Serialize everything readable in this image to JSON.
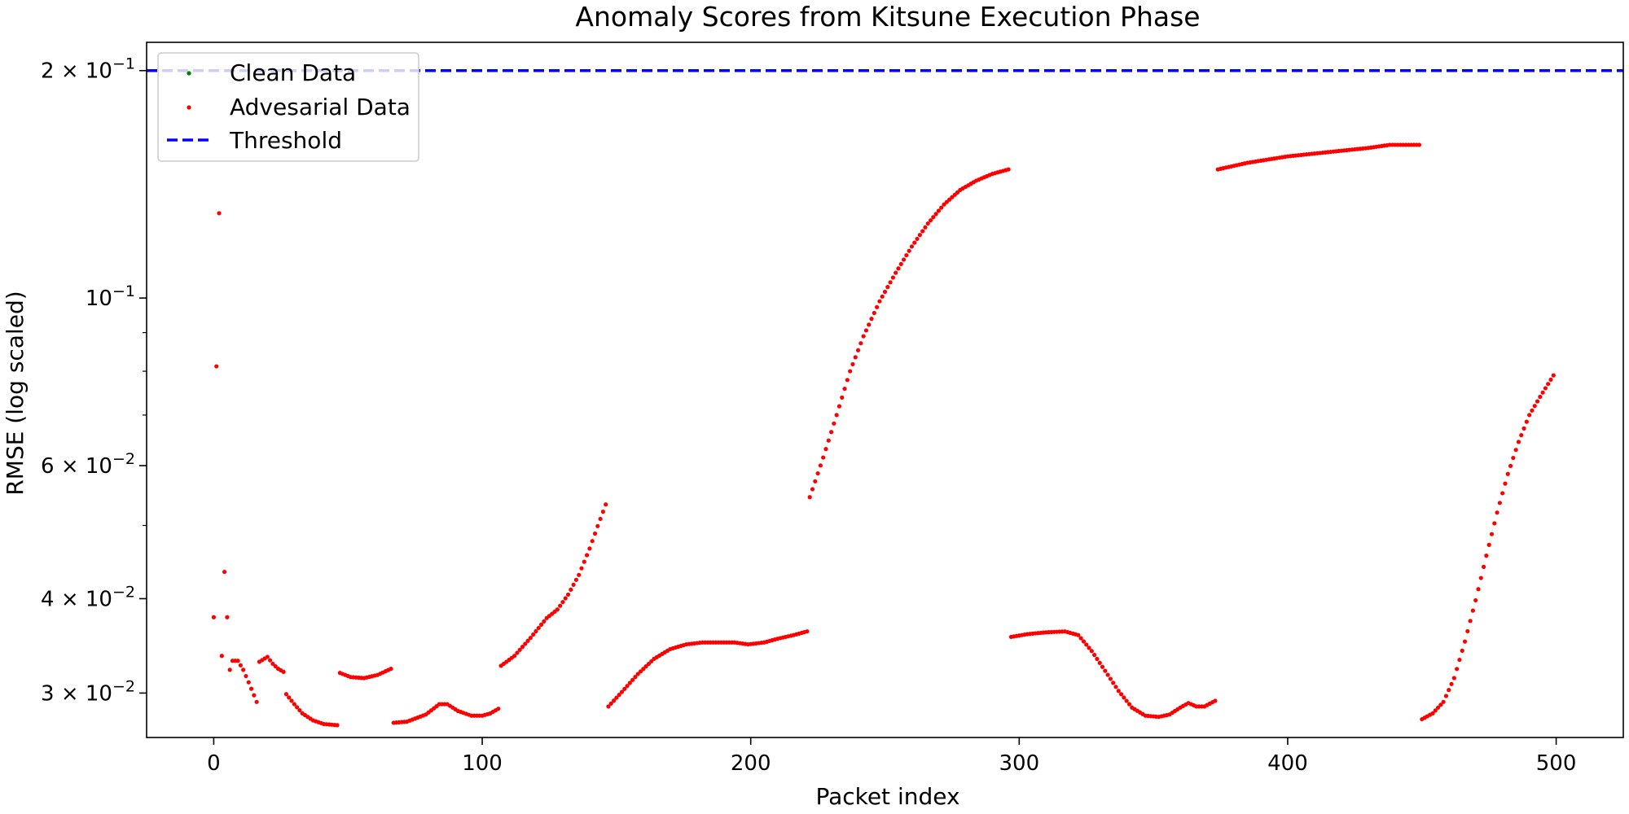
{
  "chart_data": {
    "type": "scatter",
    "title": "Anomaly Scores from Kitsune Execution Phase",
    "xlabel": "Packet index",
    "ylabel": "RMSE (log scaled)",
    "xlim": [
      -25,
      525
    ],
    "ylim": [
      0.0262,
      0.218
    ],
    "yscale": "log",
    "grid": false,
    "legend_position": "top-left",
    "x_ticks": [
      {
        "value": 0,
        "label": "0"
      },
      {
        "value": 100,
        "label": "100"
      },
      {
        "value": 200,
        "label": "200"
      },
      {
        "value": 300,
        "label": "300"
      },
      {
        "value": 400,
        "label": "400"
      },
      {
        "value": 500,
        "label": "500"
      }
    ],
    "y_major_ticks": [
      {
        "value": 0.03,
        "base": "3",
        "exp": "−2"
      },
      {
        "value": 0.04,
        "base": "4",
        "exp": "−2"
      },
      {
        "value": 0.06,
        "base": "6",
        "exp": "−2"
      },
      {
        "value": 0.1,
        "base": "",
        "exp": "−1"
      },
      {
        "value": 0.2,
        "base": "2",
        "exp": "−1"
      }
    ],
    "y_minor_ticks": [
      0.05,
      0.07,
      0.08,
      0.09
    ],
    "threshold": 0.2,
    "series": [
      {
        "name": "Clean Data",
        "color": "#008000",
        "points": []
      },
      {
        "name": "Advesarial Data",
        "color": "#ff0000",
        "segments": [
          {
            "x0": 0,
            "x1": 0,
            "knots": [
              [
                0,
                0.0378
              ]
            ]
          },
          {
            "x0": 1,
            "x1": 1,
            "knots": [
              [
                1,
                0.0812
              ]
            ]
          },
          {
            "x0": 2,
            "x1": 2,
            "knots": [
              [
                2,
                0.1295
              ]
            ]
          },
          {
            "x0": 3,
            "x1": 3,
            "knots": [
              [
                3,
                0.0336
              ]
            ]
          },
          {
            "x0": 4,
            "x1": 4,
            "knots": [
              [
                4,
                0.0434
              ]
            ]
          },
          {
            "x0": 5,
            "x1": 5,
            "knots": [
              [
                5,
                0.0378
              ]
            ]
          },
          {
            "x0": 6,
            "x1": 6,
            "knots": [
              [
                6,
                0.0322
              ]
            ]
          },
          {
            "x0": 7,
            "x1": 16,
            "knots": [
              [
                7,
                0.0331
              ],
              [
                9,
                0.0331
              ],
              [
                11,
                0.0322
              ],
              [
                13,
                0.031
              ],
              [
                15,
                0.0298
              ],
              [
                16,
                0.0292
              ]
            ]
          },
          {
            "x0": 17,
            "x1": 26,
            "knots": [
              [
                17,
                0.033
              ],
              [
                20,
                0.0335
              ],
              [
                22,
                0.0328
              ],
              [
                24,
                0.0323
              ],
              [
                26,
                0.032
              ]
            ]
          },
          {
            "x0": 27,
            "x1": 46,
            "knots": [
              [
                27,
                0.0299
              ],
              [
                30,
                0.029
              ],
              [
                33,
                0.0282
              ],
              [
                37,
                0.0276
              ],
              [
                41,
                0.0273
              ],
              [
                46,
                0.0272
              ]
            ]
          },
          {
            "x0": 47,
            "x1": 66,
            "knots": [
              [
                47,
                0.0319
              ],
              [
                51,
                0.0315
              ],
              [
                56,
                0.0314
              ],
              [
                61,
                0.0317
              ],
              [
                66,
                0.0323
              ]
            ]
          },
          {
            "x0": 67,
            "x1": 106,
            "knots": [
              [
                67,
                0.0274
              ],
              [
                72,
                0.0275
              ],
              [
                79,
                0.0281
              ],
              [
                84,
                0.029
              ],
              [
                87,
                0.029
              ],
              [
                91,
                0.0284
              ],
              [
                96,
                0.028
              ],
              [
                100,
                0.028
              ],
              [
                103,
                0.0282
              ],
              [
                106,
                0.0286
              ]
            ]
          },
          {
            "x0": 107,
            "x1": 146,
            "knots": [
              [
                107,
                0.0326
              ],
              [
                112,
                0.0336
              ],
              [
                118,
                0.0355
              ],
              [
                124,
                0.0377
              ],
              [
                128,
                0.0387
              ],
              [
                132,
                0.0405
              ],
              [
                136,
                0.043
              ],
              [
                140,
                0.0466
              ],
              [
                143,
                0.0499
              ],
              [
                146,
                0.0533
              ]
            ]
          },
          {
            "x0": 147,
            "x1": 221,
            "knots": [
              [
                147,
                0.0288
              ],
              [
                152,
                0.0301
              ],
              [
                158,
                0.0318
              ],
              [
                164,
                0.0333
              ],
              [
                170,
                0.0343
              ],
              [
                176,
                0.0348
              ],
              [
                182,
                0.035
              ],
              [
                188,
                0.035
              ],
              [
                194,
                0.035
              ],
              [
                199,
                0.0348
              ],
              [
                205,
                0.035
              ],
              [
                210,
                0.0354
              ],
              [
                216,
                0.0358
              ],
              [
                221,
                0.0362
              ]
            ]
          },
          {
            "x0": 222,
            "x1": 296,
            "knots": [
              [
                222,
                0.0545
              ],
              [
                227,
                0.0615
              ],
              [
                232,
                0.07
              ],
              [
                237,
                0.08
              ],
              [
                242,
                0.089
              ],
              [
                248,
                0.099
              ],
              [
                254,
                0.108
              ],
              [
                260,
                0.117
              ],
              [
                266,
                0.1255
              ],
              [
                272,
                0.133
              ],
              [
                278,
                0.139
              ],
              [
                284,
                0.143
              ],
              [
                290,
                0.146
              ],
              [
                296,
                0.148
              ]
            ]
          },
          {
            "x0": 297,
            "x1": 373,
            "knots": [
              [
                297,
                0.0356
              ],
              [
                303,
                0.0359
              ],
              [
                310,
                0.0361
              ],
              [
                317,
                0.0362
              ],
              [
                322,
                0.0358
              ],
              [
                327,
                0.0341
              ],
              [
                332,
                0.0321
              ],
              [
                337,
                0.0302
              ],
              [
                342,
                0.0287
              ],
              [
                347,
                0.028
              ],
              [
                352,
                0.0279
              ],
              [
                356,
                0.0281
              ],
              [
                360,
                0.0287
              ],
              [
                363,
                0.0291
              ],
              [
                366,
                0.0288
              ],
              [
                369,
                0.0288
              ],
              [
                373,
                0.0293
              ]
            ]
          },
          {
            "x0": 374,
            "x1": 449,
            "knots": [
              [
                374,
                0.148
              ],
              [
                385,
                0.151
              ],
              [
                400,
                0.154
              ],
              [
                415,
                0.156
              ],
              [
                430,
                0.158
              ],
              [
                438,
                0.1595
              ],
              [
                449,
                0.1595
              ]
            ]
          },
          {
            "x0": 450,
            "x1": 499,
            "knots": [
              [
                450,
                0.0277
              ],
              [
                454,
                0.0282
              ],
              [
                458,
                0.0292
              ],
              [
                462,
                0.0314
              ],
              [
                466,
                0.0351
              ],
              [
                470,
                0.0398
              ],
              [
                474,
                0.0456
              ],
              [
                478,
                0.052
              ],
              [
                482,
                0.0585
              ],
              [
                486,
                0.0645
              ],
              [
                490,
                0.07
              ],
              [
                494,
                0.074
              ],
              [
                499,
                0.079
              ]
            ]
          }
        ]
      },
      {
        "name": "Threshold",
        "color": "#0000ff",
        "style": "dashed",
        "value": 0.2
      }
    ]
  }
}
